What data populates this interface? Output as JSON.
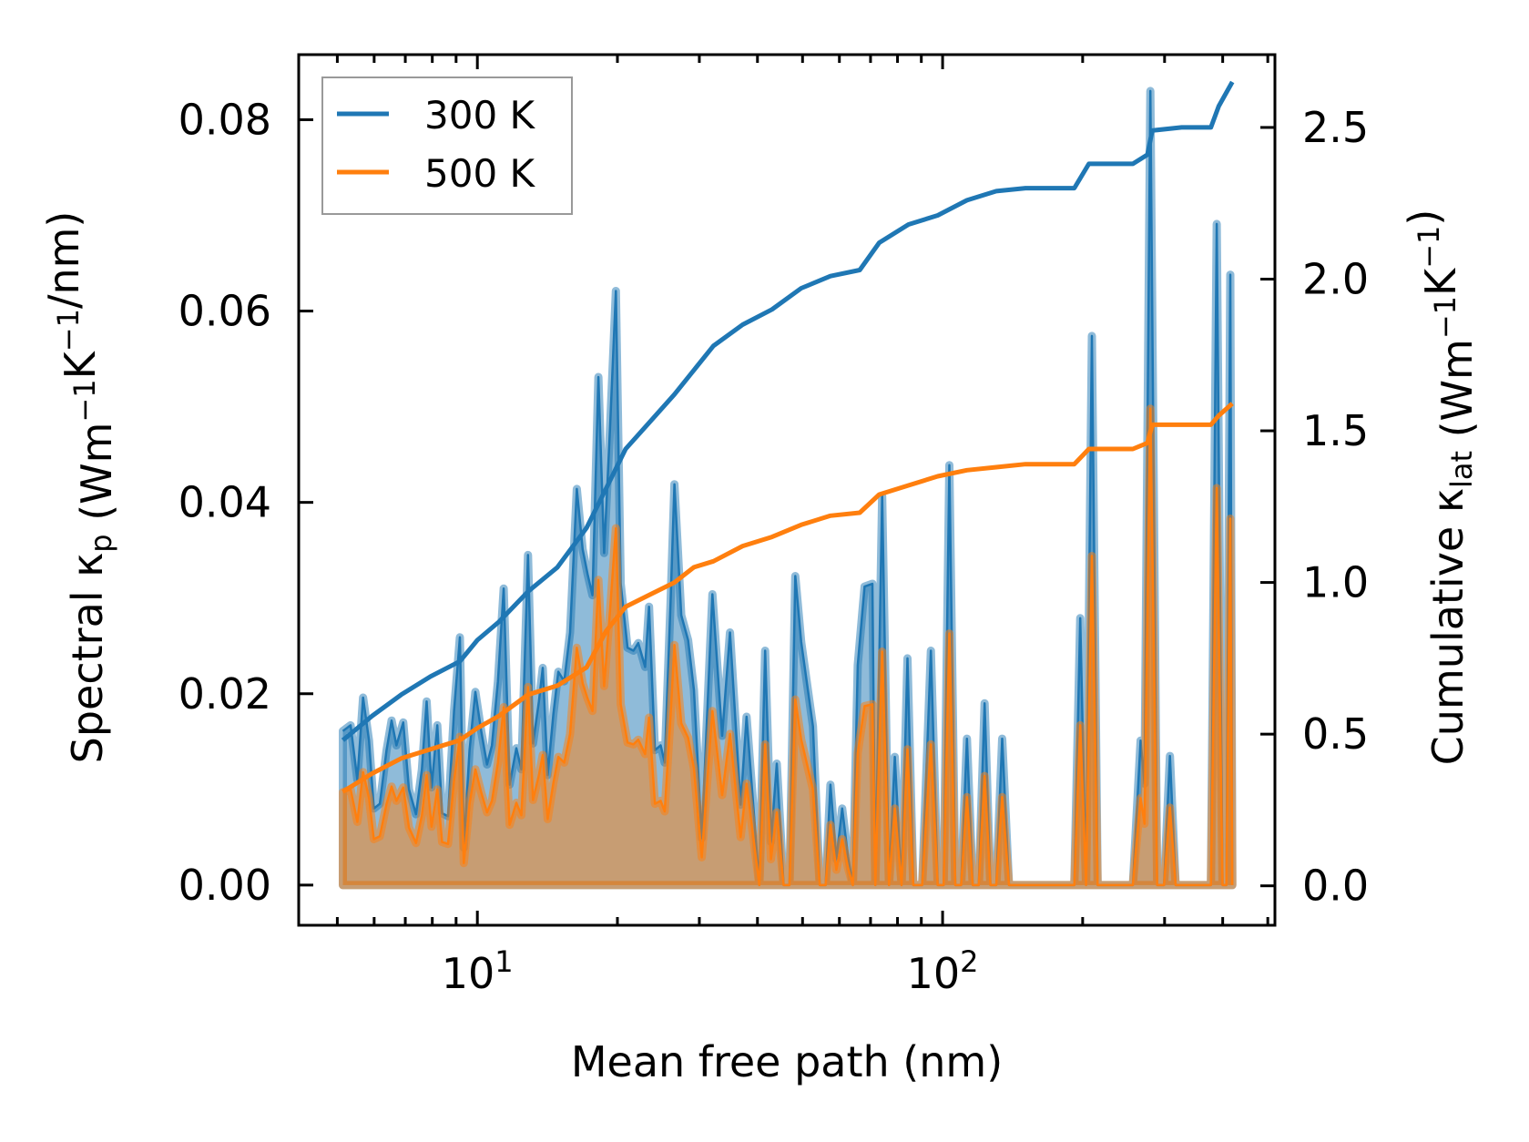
{
  "chart_data": {
    "type": "line",
    "title": "",
    "xlabel": "Mean free path (nm)",
    "xscale": "log",
    "xlim": [
      4.13,
      518
    ],
    "xticks": [
      {
        "value": 10,
        "base": "10",
        "exp": "1"
      },
      {
        "value": 100,
        "base": "10",
        "exp": "2"
      }
    ],
    "ylabel_left": [
      [
        "Spectral κ",
        ""
      ],
      [
        "p",
        "sub"
      ],
      [
        " (Wm",
        ""
      ],
      [
        "−1",
        "sup"
      ],
      [
        "K",
        ""
      ],
      [
        "−1",
        "sup"
      ],
      [
        "/nm)",
        ""
      ]
    ],
    "ylabel_right": [
      [
        "Cumulative κ",
        ""
      ],
      [
        "lat",
        "sub"
      ],
      [
        " (Wm",
        ""
      ],
      [
        "−1",
        "sup"
      ],
      [
        "K",
        ""
      ],
      [
        "−1",
        "sup"
      ],
      [
        ")",
        ""
      ]
    ],
    "ylim_left": [
      -0.0042,
      0.0868
    ],
    "ylim_right": [
      -0.13,
      2.74
    ],
    "yticks_left": [
      "0.00",
      "0.02",
      "0.04",
      "0.06",
      "0.08"
    ],
    "yticks_right": [
      "0.0",
      "0.5",
      "1.0",
      "1.5",
      "2.0",
      "2.5"
    ],
    "legend": {
      "placement": "top-left",
      "entries": [
        "300 K",
        "500 K"
      ]
    },
    "colors": {
      "300 K": "#1f77b4",
      "500 K": "#ff7f0e"
    },
    "grid": false,
    "spectral_x": [
      5.14,
      5.34,
      5.52,
      5.68,
      5.85,
      5.99,
      6.17,
      6.38,
      6.54,
      6.7,
      6.93,
      7.13,
      7.38,
      7.6,
      7.78,
      7.97,
      8.2,
      8.4,
      8.65,
      8.91,
      9.17,
      9.35,
      9.62,
      9.9,
      10.19,
      10.49,
      10.75,
      11.07,
      11.39,
      11.73,
      12.13,
      12.43,
      12.85,
      13.17,
      13.56,
      13.82,
      14.16,
      14.57,
      14.93,
      15.37,
      15.82,
      16.36,
      16.84,
      17.25,
      17.68,
      18.2,
      18.73,
      19.28,
      19.85,
      20.33,
      21.03,
      21.65,
      22.18,
      22.94,
      23.39,
      24.08,
      24.78,
      25.27,
      26.01,
      26.52,
      27.43,
      28.38,
      29.21,
      30.36,
      32.01,
      33.59,
      34.91,
      36.81,
      37.9,
      40.36,
      41.55,
      42.76,
      44.02,
      45.53,
      46.87,
      48.24,
      49.66,
      52.63,
      54.44,
      56.04,
      57.41,
      59.1,
      60.83,
      62.61,
      64.14,
      65.71,
      67.97,
      70.65,
      71.69,
      74.13,
      76.68,
      78.93,
      81.63,
      84.03,
      86.5,
      90.36,
      94.37,
      97.61,
      100.5,
      103.4,
      106.5,
      109.6,
      112.8,
      116.1,
      119.6,
      123.1,
      126.7,
      130.4,
      134.3,
      138.9,
      191.9,
      197.6,
      203.4,
      209.4,
      215.4,
      256.4,
      266.5,
      271.6,
      279.6,
      289.2,
      299.2,
      308.0,
      316.9,
      377.3,
      388.4,
      399.8,
      407.4,
      415.4,
      419.4
    ],
    "series": [
      {
        "name": "300 K",
        "spectral": [
          0.0161,
          0.0167,
          0.011,
          0.0196,
          0.0151,
          0.008,
          0.0085,
          0.0141,
          0.0172,
          0.0146,
          0.017,
          0.01,
          0.0074,
          0.0121,
          0.0192,
          0.0102,
          0.0167,
          0.0075,
          0.0072,
          0.0182,
          0.0259,
          0.0039,
          0.0141,
          0.0202,
          0.0161,
          0.0126,
          0.0146,
          0.0213,
          0.031,
          0.0105,
          0.0143,
          0.0121,
          0.0345,
          0.0148,
          0.0192,
          0.0227,
          0.0115,
          0.0179,
          0.0223,
          0.0213,
          0.0264,
          0.0414,
          0.0351,
          0.0325,
          0.0303,
          0.0531,
          0.0347,
          0.0478,
          0.0621,
          0.0315,
          0.0248,
          0.0245,
          0.0253,
          0.0228,
          0.0291,
          0.0141,
          0.0146,
          0.0128,
          0.0294,
          0.0419,
          0.0282,
          0.0256,
          0.0204,
          0.0049,
          0.0304,
          0.0156,
          0.0264,
          0.0084,
          0.0176,
          0,
          0.0245,
          0.0045,
          0.0127,
          0,
          0,
          0.0323,
          0.0254,
          0.0166,
          0,
          0,
          0.0105,
          0.0027,
          0.008,
          0.003,
          0,
          0.023,
          0.0312,
          0.0315,
          0,
          0.0407,
          0,
          0.0134,
          0,
          0.0237,
          0,
          0,
          0.0245,
          0,
          0,
          0.0439,
          0,
          0,
          0.0153,
          0,
          0,
          0.019,
          0,
          0,
          0.0153,
          0,
          0,
          0.0279,
          0,
          0.0574,
          0,
          0,
          0.0151,
          0.0106,
          0.083,
          0,
          0,
          0.0135,
          0,
          0,
          0.0691,
          0,
          0,
          0.0638,
          0
        ],
        "cumulative_x": [
          5.14,
          5.94,
          6.86,
          7.93,
          9.17,
          10.0,
          11.12,
          12.85,
          14.86,
          17.17,
          18.91,
          20.83,
          23.5,
          26.52,
          29.21,
          32.17,
          37.17,
          42.97,
          49.66,
          57.41,
          66.35,
          73.07,
          84.46,
          97.61,
          112.8,
          130.4,
          150.7,
          191.9,
          206.3,
          256.4,
          275.6,
          282.3,
          326.3,
          377.3,
          392.2,
          419.4
        ],
        "cumulative": [
          0.48,
          0.56,
          0.63,
          0.69,
          0.74,
          0.81,
          0.87,
          0.97,
          1.05,
          1.18,
          1.31,
          1.44,
          1.53,
          1.62,
          1.7,
          1.78,
          1.85,
          1.9,
          1.97,
          2.01,
          2.03,
          2.12,
          2.18,
          2.21,
          2.26,
          2.29,
          2.3,
          2.3,
          2.38,
          2.38,
          2.41,
          2.49,
          2.5,
          2.5,
          2.57,
          2.65
        ]
      },
      {
        "name": "500 K",
        "spectral": [
          0.0097,
          0.01,
          0.0066,
          0.0118,
          0.0091,
          0.0048,
          0.0051,
          0.0085,
          0.0103,
          0.0088,
          0.0102,
          0.006,
          0.0044,
          0.0073,
          0.0115,
          0.0061,
          0.01,
          0.0045,
          0.0043,
          0.0109,
          0.0155,
          0.0023,
          0.0085,
          0.0121,
          0.0097,
          0.0076,
          0.0088,
          0.0128,
          0.0186,
          0.0063,
          0.0086,
          0.0073,
          0.0207,
          0.0089,
          0.0115,
          0.0136,
          0.0069,
          0.0107,
          0.0134,
          0.0128,
          0.0158,
          0.0248,
          0.0211,
          0.0195,
          0.0182,
          0.0319,
          0.0208,
          0.0287,
          0.0373,
          0.0189,
          0.0149,
          0.0147,
          0.0152,
          0.0137,
          0.0175,
          0.0085,
          0.0088,
          0.0077,
          0.0176,
          0.0251,
          0.0169,
          0.0154,
          0.0122,
          0.0029,
          0.0182,
          0.0094,
          0.0158,
          0.005,
          0.0106,
          0,
          0.0147,
          0.0027,
          0.0076,
          0,
          0,
          0.0194,
          0.0152,
          0.01,
          0,
          0,
          0.0063,
          0.0016,
          0.0048,
          0.0018,
          0,
          0.0138,
          0.0187,
          0.0189,
          0,
          0.0244,
          0,
          0.008,
          0,
          0.0142,
          0,
          0,
          0.0147,
          0,
          0,
          0.0263,
          0,
          0,
          0.0092,
          0,
          0,
          0.0114,
          0,
          0,
          0.0092,
          0,
          0,
          0.0167,
          0,
          0.0344,
          0,
          0,
          0.0091,
          0.0064,
          0.0498,
          0,
          0,
          0.0081,
          0,
          0,
          0.0415,
          0,
          0,
          0.0383,
          0
        ],
        "cumulative_x": [
          5.14,
          5.94,
          6.86,
          7.93,
          9.17,
          10.0,
          11.12,
          12.85,
          14.86,
          17.17,
          18.91,
          20.83,
          23.5,
          26.52,
          29.21,
          32.17,
          37.17,
          42.97,
          49.66,
          57.41,
          66.35,
          73.07,
          84.46,
          97.61,
          112.8,
          130.4,
          150.7,
          191.9,
          206.3,
          256.4,
          275.6,
          282.3,
          326.3,
          377.3,
          392.2,
          419.4
        ],
        "cumulative": [
          0.31,
          0.37,
          0.42,
          0.45,
          0.48,
          0.52,
          0.56,
          0.63,
          0.66,
          0.72,
          0.84,
          0.92,
          0.96,
          1.0,
          1.05,
          1.07,
          1.12,
          1.15,
          1.19,
          1.22,
          1.23,
          1.29,
          1.32,
          1.35,
          1.37,
          1.38,
          1.39,
          1.39,
          1.44,
          1.44,
          1.46,
          1.52,
          1.52,
          1.52,
          1.55,
          1.59
        ]
      }
    ]
  }
}
